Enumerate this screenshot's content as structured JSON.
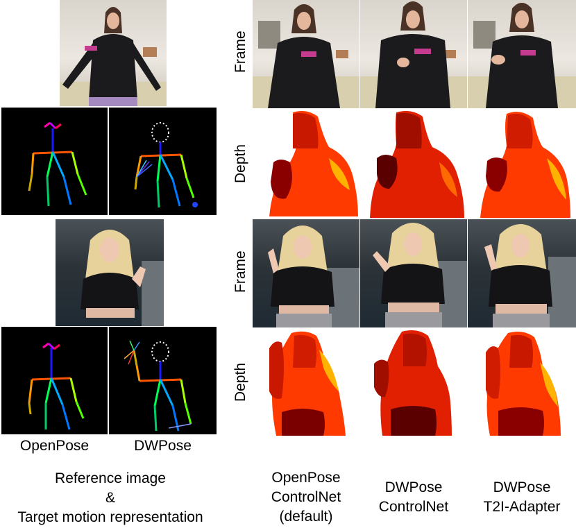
{
  "row_labels": {
    "frame_top": "Frame",
    "depth_top": "Depth",
    "frame_bottom": "Frame",
    "depth_bottom": "Depth"
  },
  "pose_labels": {
    "openpose": "OpenPose",
    "dwpose": "DWPose"
  },
  "left_caption": {
    "line1": "Reference image",
    "line2": "&",
    "line3": "Target motion representation"
  },
  "columns": [
    {
      "line1": "OpenPose",
      "line2": "ControlNet",
      "line3": "(default)"
    },
    {
      "line1": "DWPose",
      "line2": "ControlNet"
    },
    {
      "line1": "DWPose",
      "line2": "T2I-Adapter"
    }
  ],
  "colors": {
    "pose_background": "#000000",
    "depth_dark": "#8a0000",
    "depth_bright": "#ff3a00",
    "depth_edge": "#ffb300",
    "sweater_dark": "#1b1b1d",
    "hair_blonde": "#e6d29a"
  }
}
